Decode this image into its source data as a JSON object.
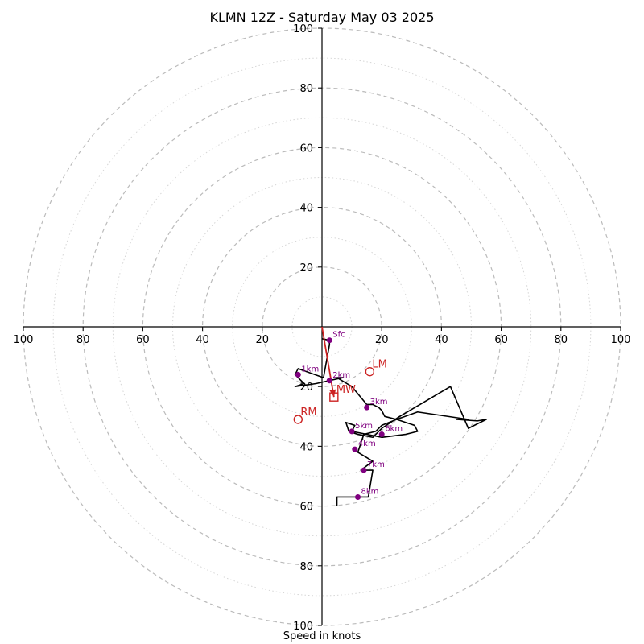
{
  "chart_data": {
    "type": "scatter",
    "title": "KLMN 12Z - Saturday May 03 2025",
    "xlabel": "Speed in knots",
    "ylabel": "",
    "rlim": [
      0,
      100
    ],
    "x_tick_labels": [
      "100",
      "80",
      "60",
      "40",
      "20",
      "20",
      "40",
      "60",
      "80",
      "100"
    ],
    "x_tick_values": [
      -100,
      -80,
      -60,
      -40,
      -20,
      20,
      40,
      60,
      80,
      100
    ],
    "y_tick_labels": [
      "100",
      "80",
      "60",
      "40",
      "20",
      "20",
      "40",
      "60",
      "80",
      "100"
    ],
    "y_tick_values": [
      100,
      80,
      60,
      40,
      20,
      -20,
      -40,
      -60,
      -80,
      -100
    ],
    "rings_major": [
      20,
      40,
      60,
      80,
      100
    ],
    "rings_minor": [
      10,
      30,
      50,
      70,
      90
    ],
    "hodograph_u": [
      0,
      2.5,
      2.5,
      0.5,
      -8,
      -9,
      -6,
      -9,
      -2,
      2.5,
      7,
      5,
      10,
      15,
      17,
      19,
      20,
      21,
      25,
      31,
      32,
      28,
      20,
      15,
      10,
      11,
      8,
      9,
      12,
      17,
      20,
      26,
      43,
      49,
      55,
      52,
      45,
      49,
      32,
      25,
      20,
      18,
      14,
      12,
      17,
      13,
      15,
      17,
      15.5,
      11,
      11,
      5,
      5
    ],
    "hodograph_v": [
      -4,
      -4.5,
      -6,
      -17,
      -14,
      -16,
      -19,
      -20,
      -19,
      -18,
      -17,
      -17,
      -20,
      -26,
      -26,
      -27,
      -28,
      -30,
      -31,
      -33,
      -35,
      -36,
      -37,
      -36,
      -35,
      -33,
      -32,
      -35,
      -36,
      -37,
      -34,
      -30,
      -20,
      -34,
      -31,
      -31.5,
      -31,
      -31,
      -28.5,
      -31,
      -33,
      -35,
      -36,
      -42,
      -45,
      -48,
      -48,
      -48,
      -57,
      -57,
      -57,
      -57,
      -60
    ],
    "height_markers": [
      {
        "label": "Sfc",
        "u": 2.5,
        "v": -4.5
      },
      {
        "label": "1km",
        "u": -8,
        "v": -16
      },
      {
        "label": "2km",
        "u": 2.5,
        "v": -18
      },
      {
        "label": "3km",
        "u": 15,
        "v": -27
      },
      {
        "label": "4km",
        "u": 11,
        "v": -41
      },
      {
        "label": "5km",
        "u": 10,
        "v": -35
      },
      {
        "label": "6km",
        "u": 20,
        "v": -36
      },
      {
        "label": "7km",
        "u": 14,
        "v": -48
      },
      {
        "label": "8km",
        "u": 12,
        "v": -57
      }
    ],
    "motion_markers": [
      {
        "label": "LM",
        "u": 16,
        "v": -15,
        "shape": "circle"
      },
      {
        "label": "RM",
        "u": -8,
        "v": -31,
        "shape": "circle"
      },
      {
        "label": "MW",
        "u": 4,
        "v": -23.5,
        "shape": "square"
      }
    ],
    "shear_vector": {
      "u0": 0,
      "v0": 0,
      "u1": 4,
      "v1": -23.5
    },
    "grid": true,
    "colors": {
      "trace": "#000000",
      "height_marker": "#800080",
      "motion": "#cc2222",
      "ring_major": "#bbbbbb",
      "ring_minor": "#d6d6d6",
      "axis": "#000000"
    }
  }
}
